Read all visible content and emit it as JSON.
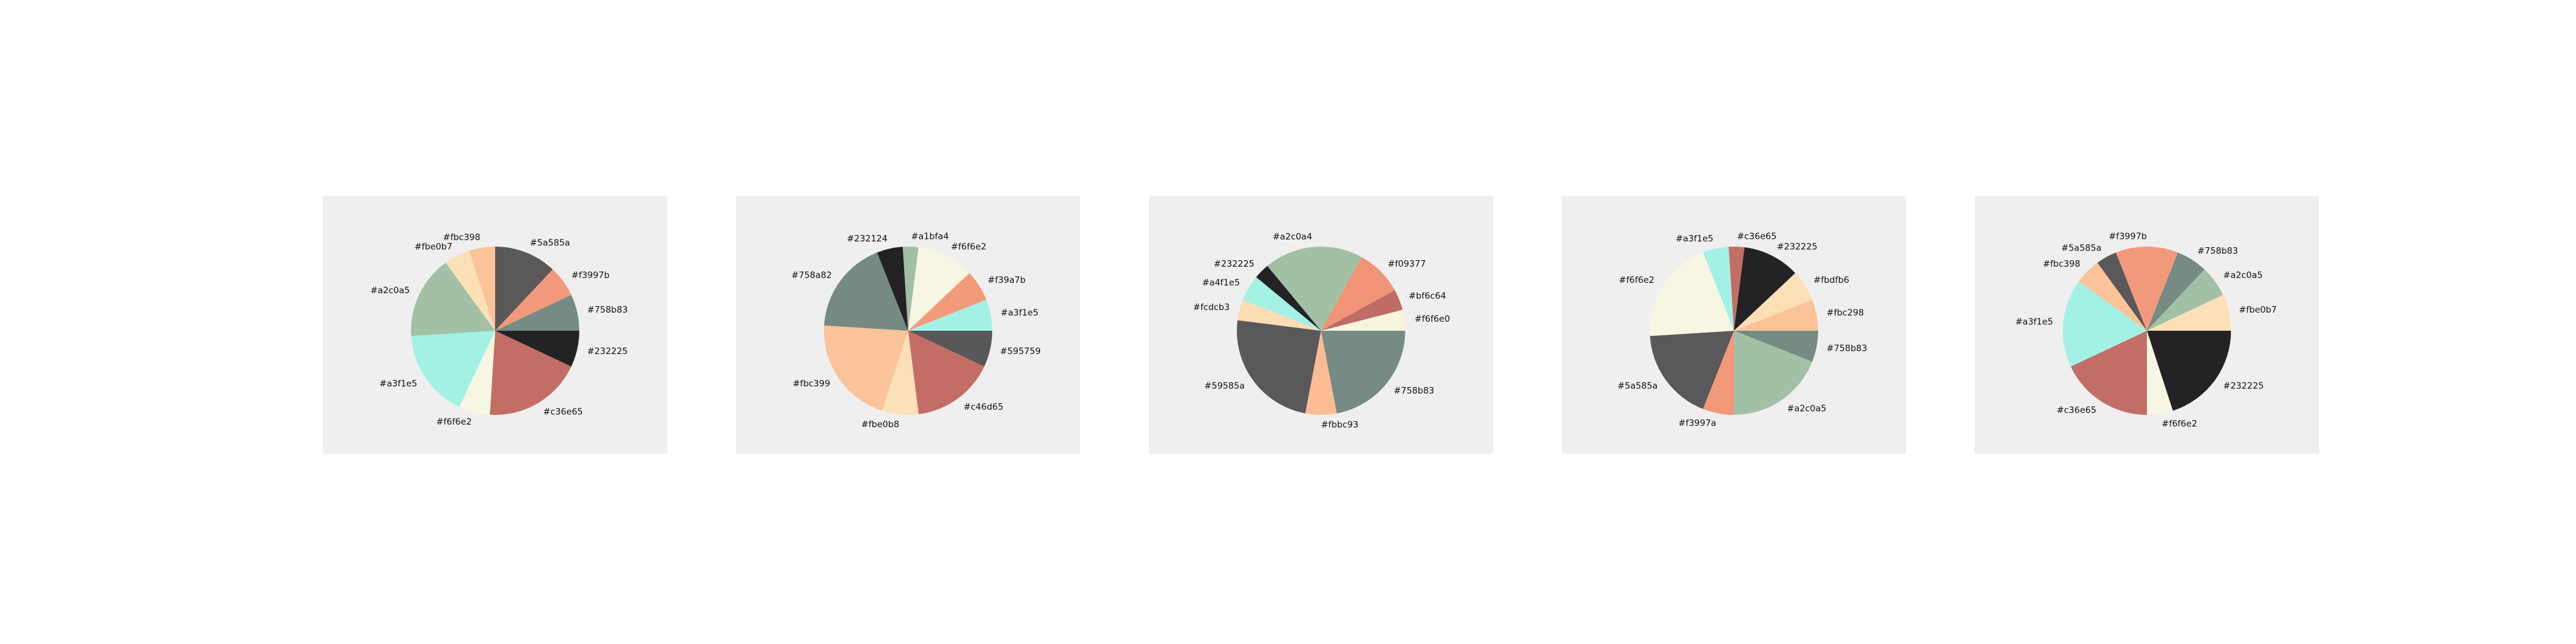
{
  "chart_data": [
    {
      "type": "pie",
      "slices": [
        {
          "label": "#232225",
          "color": "#232225",
          "value": 7
        },
        {
          "label": "#c36e65",
          "color": "#c36e65",
          "value": 19
        },
        {
          "label": "#f6f6e2",
          "color": "#f6f6e2",
          "value": 6
        },
        {
          "label": "#a3f1e5",
          "color": "#a3f1e5",
          "value": 17
        },
        {
          "label": "#a2c0a5",
          "color": "#a2c0a5",
          "value": 16
        },
        {
          "label": "#fbe0b7",
          "color": "#fbe0b7",
          "value": 5
        },
        {
          "label": "#fbc398",
          "color": "#fbc398",
          "value": 5
        },
        {
          "label": "#5a585a",
          "color": "#5a585a",
          "value": 12
        },
        {
          "label": "#f3997b",
          "color": "#f3997b",
          "value": 6
        },
        {
          "label": "#758b83",
          "color": "#758b83",
          "value": 7
        }
      ]
    },
    {
      "type": "pie",
      "slices": [
        {
          "label": "#595759",
          "color": "#595759",
          "value": 7
        },
        {
          "label": "#c46d65",
          "color": "#c46d65",
          "value": 16
        },
        {
          "label": "#fbe0b8",
          "color": "#fbe0b8",
          "value": 7
        },
        {
          "label": "#fbc399",
          "color": "#fbc399",
          "value": 21
        },
        {
          "label": "#758a82",
          "color": "#758a82",
          "value": 18
        },
        {
          "label": "#232124",
          "color": "#232124",
          "value": 5
        },
        {
          "label": "#a1bfa4",
          "color": "#a1bfa4",
          "value": 3
        },
        {
          "label": "#f6f6e2",
          "color": "#f6f6e2",
          "value": 11
        },
        {
          "label": "#f39a7b",
          "color": "#f39a7b",
          "value": 6
        },
        {
          "label": "#a3f1e5",
          "color": "#a3f1e5",
          "value": 6
        }
      ]
    },
    {
      "type": "pie",
      "slices": [
        {
          "label": "#758b83",
          "color": "#758b83",
          "value": 22
        },
        {
          "label": "#fbbc93",
          "color": "#fbbc93",
          "value": 6
        },
        {
          "label": "#59585a",
          "color": "#59585a",
          "value": 24
        },
        {
          "label": "#fcdcb3",
          "color": "#fcdcb3",
          "value": 4
        },
        {
          "label": "#a4f1e5",
          "color": "#a4f1e5",
          "value": 5
        },
        {
          "label": "#232225",
          "color": "#232225",
          "value": 3
        },
        {
          "label": "#a2c0a4",
          "color": "#a2c0a4",
          "value": 19
        },
        {
          "label": "#f09377",
          "color": "#f09377",
          "value": 9
        },
        {
          "label": "#bf6c64",
          "color": "#bf6c64",
          "value": 4
        },
        {
          "label": "#f6f6e0",
          "color": "#f6f6e0",
          "value": 4
        }
      ]
    },
    {
      "type": "pie",
      "slices": [
        {
          "label": "#758b83",
          "color": "#758b83",
          "value": 6
        },
        {
          "label": "#a2c0a5",
          "color": "#a2c0a5",
          "value": 19
        },
        {
          "label": "#f3997a",
          "color": "#f3997a",
          "value": 6
        },
        {
          "label": "#5a585a",
          "color": "#5a585a",
          "value": 18
        },
        {
          "label": "#f6f6e2",
          "color": "#f6f6e2",
          "value": 20
        },
        {
          "label": "#a3f1e5",
          "color": "#a3f1e5",
          "value": 5
        },
        {
          "label": "#c36e65",
          "color": "#c36e65",
          "value": 3
        },
        {
          "label": "#232225",
          "color": "#232225",
          "value": 11
        },
        {
          "label": "#fbdfb6",
          "color": "#fbdfb6",
          "value": 6
        },
        {
          "label": "#fbc298",
          "color": "#fbc298",
          "value": 6
        }
      ]
    },
    {
      "type": "pie",
      "slices": [
        {
          "label": "#232225",
          "color": "#232225",
          "value": 20
        },
        {
          "label": "#f6f6e2",
          "color": "#f6f6e2",
          "value": 5
        },
        {
          "label": "#c36e65",
          "color": "#c36e65",
          "value": 18
        },
        {
          "label": "#a3f1e5",
          "color": "#a3f1e5",
          "value": 17
        },
        {
          "label": "#fbc398",
          "color": "#fbc398",
          "value": 5
        },
        {
          "label": "#5a585a",
          "color": "#5a585a",
          "value": 4
        },
        {
          "label": "#f3997b",
          "color": "#f3997b",
          "value": 12
        },
        {
          "label": "#758b83",
          "color": "#758b83",
          "value": 6
        },
        {
          "label": "#a2c0a5",
          "color": "#a2c0a5",
          "value": 6
        },
        {
          "label": "#fbe0b7",
          "color": "#fbe0b7",
          "value": 7
        }
      ]
    }
  ]
}
